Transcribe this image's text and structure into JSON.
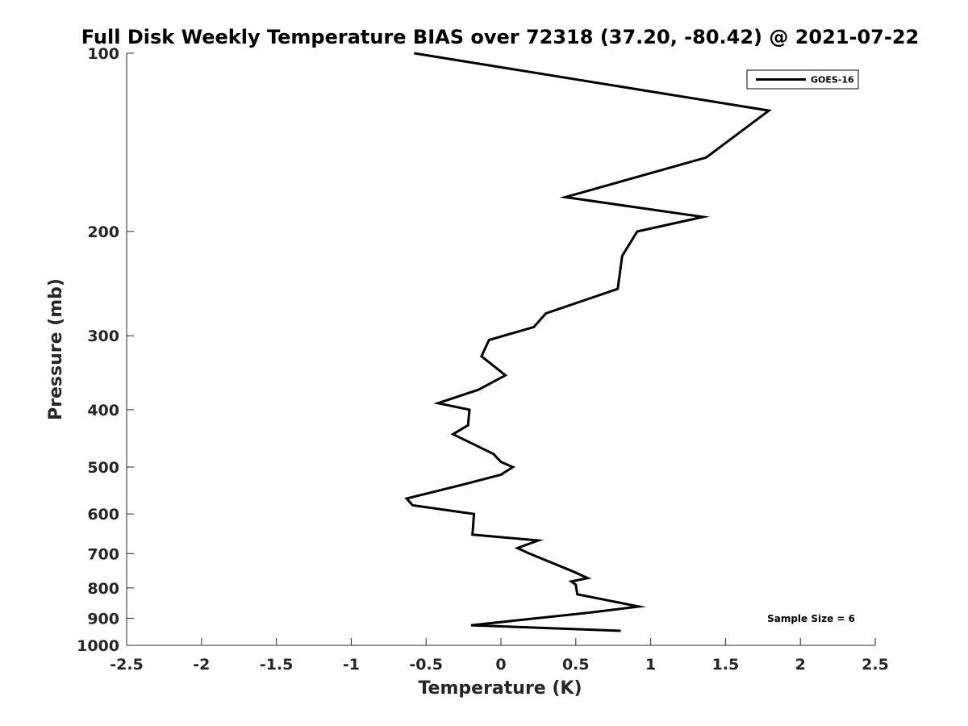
{
  "chart_data": {
    "type": "line",
    "title": "Full Disk Weekly Temperature BIAS over 72318 (37.20, -80.42) @ 2021-07-22",
    "xlabel": "Temperature (K)",
    "ylabel": "Pressure (mb)",
    "xlim": [
      -2.5,
      2.5
    ],
    "ylim": [
      1000,
      100
    ],
    "yscale": "log",
    "xticks": [
      -2.5,
      -2,
      -1.5,
      -1,
      -0.5,
      0,
      0.5,
      1,
      1.5,
      2,
      2.5
    ],
    "xtick_labels": [
      "-2.5",
      "-2",
      "-1.5",
      "-1",
      "-0.5",
      "0",
      "0.5",
      "1",
      "1.5",
      "2",
      "2.5"
    ],
    "yticks": [
      100,
      200,
      300,
      400,
      500,
      600,
      700,
      800,
      900,
      1000
    ],
    "ytick_labels": [
      "100",
      "200",
      "300",
      "400",
      "500",
      "600",
      "700",
      "800",
      "900",
      "1000"
    ],
    "grid": false,
    "legend_position": "top-right",
    "series": [
      {
        "name": "GOES-16",
        "color": "#000000",
        "x": [
          -0.58,
          1.79,
          1.37,
          0.43,
          1.35,
          0.91,
          0.81,
          0.78,
          0.3,
          0.22,
          -0.08,
          -0.13,
          0.03,
          -0.15,
          -0.42,
          -0.21,
          -0.22,
          -0.32,
          -0.05,
          0.0,
          0.08,
          0.0,
          -0.25,
          -0.63,
          -0.59,
          -0.18,
          -0.19,
          0.25,
          0.11,
          0.19,
          0.48,
          0.58,
          0.47,
          0.5,
          0.51,
          0.92,
          0.6,
          -0.2,
          0.8
        ],
        "y": [
          100,
          125,
          150,
          175,
          189,
          200,
          220,
          250,
          275,
          290,
          305,
          325,
          350,
          370,
          390,
          400,
          425,
          440,
          475,
          490,
          500,
          515,
          535,
          565,
          580,
          600,
          650,
          665,
          685,
          700,
          750,
          770,
          780,
          790,
          820,
          860,
          880,
          925,
          945
        ]
      }
    ],
    "annotations": [
      {
        "text": "Sample Size = 6",
        "position": "bottom-right"
      }
    ]
  }
}
